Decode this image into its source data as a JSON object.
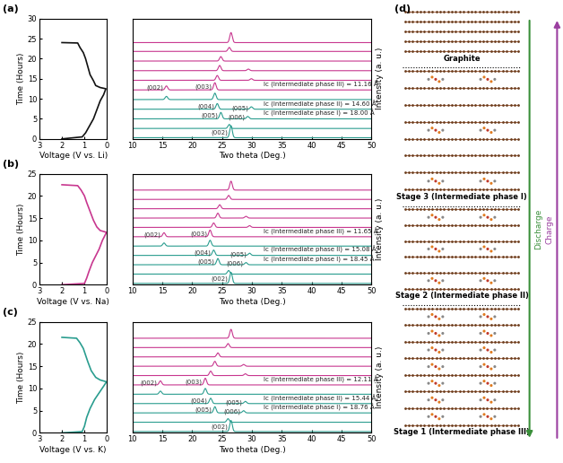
{
  "chart_data": [
    {
      "type": "line",
      "panel_label": "(a)",
      "x_label": "Voltage (V vs. Li)",
      "y_label": "Time (Hours)",
      "color": "#111111",
      "x": [
        2.0,
        1.1,
        0.95,
        0.85,
        0.75,
        0.6,
        0.5,
        0.4,
        0.3,
        0.15,
        0.05,
        0.3,
        0.5,
        0.6,
        0.75,
        0.85,
        0.95,
        1.05,
        1.2,
        1.3,
        2.0
      ],
      "values": [
        0,
        0.5,
        1.5,
        2.5,
        3.5,
        5,
        6.5,
        8,
        9.5,
        11,
        12.5,
        12.8,
        13.3,
        14.5,
        16,
        18,
        20,
        21.5,
        22.8,
        23.9,
        24.0
      ],
      "xlim": [
        3,
        0
      ],
      "xticks": [
        3,
        2,
        1,
        0
      ],
      "ylim": [
        0,
        30
      ],
      "yticks": [
        0,
        5,
        10,
        15,
        20,
        25,
        30
      ]
    },
    {
      "type": "line",
      "x_label": "Two theta (Deg.)",
      "y_label": "Intensity (a. u.)",
      "xlim": [
        10,
        50
      ],
      "xticks": [
        10,
        15,
        20,
        25,
        30,
        35,
        40,
        45,
        50
      ],
      "ylim": [
        0,
        30
      ],
      "tick_labels": "x",
      "traces": [
        {
          "offset": 0.3,
          "color": "#2a9d8f",
          "peaks": [
            {
              "two_theta": 26.5,
              "intensity": 3.0,
              "label": "(002)"
            }
          ]
        },
        {
          "offset": 2.6,
          "color": "#2a9d8f",
          "peaks": [
            {
              "two_theta": 26.2,
              "intensity": 1.0
            }
          ]
        },
        {
          "offset": 5.0,
          "color": "#2a9d8f",
          "peaks": [
            {
              "two_theta": 24.8,
              "intensity": 1.6,
              "label": "(005)"
            },
            {
              "two_theta": 29.3,
              "intensity": 0.6,
              "label": "(006)"
            }
          ],
          "note": "Ic (Intermediate phase I) = 18.00 Å"
        },
        {
          "offset": 7.4,
          "color": "#2a9d8f",
          "peaks": [
            {
              "two_theta": 24.2,
              "intensity": 1.4,
              "label": "(004)"
            },
            {
              "two_theta": 29.9,
              "intensity": 0.6,
              "label": "(005)"
            }
          ],
          "note": "Ic (Intermediate phase II) = 14.60 Å"
        },
        {
          "offset": 9.8,
          "color": "#2a9d8f",
          "peaks": [
            {
              "two_theta": 15.7,
              "intensity": 0.8
            },
            {
              "two_theta": 23.8,
              "intensity": 1.6
            }
          ]
        },
        {
          "offset": 12.2,
          "color": "#c8378f",
          "peaks": [
            {
              "two_theta": 15.7,
              "intensity": 1.0,
              "label": "(002)"
            },
            {
              "two_theta": 23.8,
              "intensity": 1.8,
              "label": "(003)"
            }
          ],
          "note": "Ic (Intermediate phase III) = 11.16 Å"
        },
        {
          "offset": 14.6,
          "color": "#c8378f",
          "peaks": [
            {
              "two_theta": 24.2,
              "intensity": 1.2
            },
            {
              "two_theta": 29.9,
              "intensity": 0.4
            }
          ]
        },
        {
          "offset": 17.0,
          "color": "#c8378f",
          "peaks": [
            {
              "two_theta": 24.6,
              "intensity": 1.3
            },
            {
              "two_theta": 29.4,
              "intensity": 0.4
            }
          ]
        },
        {
          "offset": 19.4,
          "color": "#c8378f",
          "peaks": [
            {
              "two_theta": 24.8,
              "intensity": 1.1
            }
          ]
        },
        {
          "offset": 21.8,
          "color": "#c8378f",
          "peaks": [
            {
              "two_theta": 26.2,
              "intensity": 1.0
            }
          ]
        },
        {
          "offset": 24.0,
          "color": "#c8378f",
          "peaks": [
            {
              "two_theta": 26.5,
              "intensity": 2.5
            }
          ]
        }
      ]
    },
    {
      "type": "line",
      "panel_label": "(b)",
      "x_label": "Voltage (V vs. Na)",
      "y_label": "Time (Hours)",
      "color": "#c8378f",
      "x": [
        2.0,
        1.0,
        0.9,
        0.8,
        0.65,
        0.5,
        0.35,
        0.2,
        0.02,
        0.3,
        0.45,
        0.6,
        0.75,
        0.9,
        1.0,
        1.15,
        1.3,
        2.0
      ],
      "values": [
        0,
        0.3,
        1.5,
        3,
        5,
        6.5,
        8,
        10,
        11.8,
        12.2,
        13,
        14.5,
        16.5,
        18.5,
        20,
        21.3,
        22.3,
        22.5
      ],
      "xlim": [
        3,
        0
      ],
      "xticks": [
        3,
        2,
        1,
        0
      ],
      "ylim": [
        0,
        25
      ],
      "yticks": [
        0,
        5,
        10,
        15,
        20,
        25
      ]
    },
    {
      "type": "line",
      "x_label": "Two theta (Deg.)",
      "y_label": "Intensity (a. u.)",
      "xlim": [
        10,
        50
      ],
      "xticks": [
        10,
        15,
        20,
        25,
        30,
        35,
        40,
        45,
        50
      ],
      "ylim": [
        0,
        25
      ],
      "tick_labels": "x",
      "traces": [
        {
          "offset": 0.3,
          "color": "#2a9d8f",
          "peaks": [
            {
              "two_theta": 26.5,
              "intensity": 2.5,
              "label": "(002)"
            }
          ]
        },
        {
          "offset": 2.4,
          "color": "#2a9d8f",
          "peaks": [
            {
              "two_theta": 26.1,
              "intensity": 0.8
            }
          ]
        },
        {
          "offset": 4.5,
          "color": "#2a9d8f",
          "peaks": [
            {
              "two_theta": 24.3,
              "intensity": 1.4,
              "label": "(005)"
            },
            {
              "two_theta": 29.0,
              "intensity": 0.5,
              "label": "(006)"
            }
          ],
          "note": "Ic (Intermediate phase I) = 18.45 Å"
        },
        {
          "offset": 6.6,
          "color": "#2a9d8f",
          "peaks": [
            {
              "two_theta": 23.6,
              "intensity": 1.2,
              "label": "(004)"
            },
            {
              "two_theta": 29.6,
              "intensity": 0.5,
              "label": "(005)"
            }
          ],
          "note": "Ic (Intermediate phase II) = 15.08 Å"
        },
        {
          "offset": 8.7,
          "color": "#2a9d8f",
          "peaks": [
            {
              "two_theta": 15.3,
              "intensity": 0.7
            },
            {
              "two_theta": 23.0,
              "intensity": 1.3
            }
          ]
        },
        {
          "offset": 10.8,
          "color": "#c8378f",
          "peaks": [
            {
              "two_theta": 15.3,
              "intensity": 0.9,
              "label": "(002)"
            },
            {
              "two_theta": 23.0,
              "intensity": 1.5,
              "label": "(003)"
            }
          ],
          "note": "Ic (Intermediate phase III) = 11.65 Å"
        },
        {
          "offset": 12.9,
          "color": "#c8378f",
          "peaks": [
            {
              "two_theta": 23.6,
              "intensity": 1.0
            },
            {
              "two_theta": 29.6,
              "intensity": 0.4
            }
          ]
        },
        {
          "offset": 15.0,
          "color": "#c8378f",
          "peaks": [
            {
              "two_theta": 24.3,
              "intensity": 1.1
            },
            {
              "two_theta": 29.0,
              "intensity": 0.4
            }
          ]
        },
        {
          "offset": 17.1,
          "color": "#c8378f",
          "peaks": [
            {
              "two_theta": 24.6,
              "intensity": 0.9
            }
          ]
        },
        {
          "offset": 19.2,
          "color": "#c8378f",
          "peaks": [
            {
              "two_theta": 26.1,
              "intensity": 0.9
            }
          ]
        },
        {
          "offset": 21.3,
          "color": "#c8378f",
          "peaks": [
            {
              "two_theta": 26.5,
              "intensity": 2.0
            }
          ]
        }
      ]
    },
    {
      "type": "line",
      "panel_label": "(c)",
      "x_label": "Voltage (V vs. K)",
      "y_label": "Time (Hours)",
      "color": "#2a9d8f",
      "x": [
        2.0,
        1.1,
        1.0,
        0.9,
        0.75,
        0.55,
        0.35,
        0.15,
        0.02,
        0.3,
        0.5,
        0.7,
        0.85,
        0.95,
        1.05,
        1.2,
        1.35,
        2.0
      ],
      "values": [
        0,
        0.3,
        1.5,
        3.5,
        5.5,
        7.5,
        9,
        10.5,
        11.5,
        11.9,
        12.5,
        14,
        16,
        17.5,
        19,
        20.3,
        21.3,
        21.5
      ],
      "xlim": [
        3,
        0
      ],
      "xticks": [
        3,
        2,
        1,
        0
      ],
      "ylim": [
        0,
        25
      ],
      "yticks": [
        0,
        5,
        10,
        15,
        20,
        25
      ]
    },
    {
      "type": "line",
      "x_label": "Two theta (Deg.)",
      "y_label": "Intensity (a. u.)",
      "xlim": [
        10,
        50
      ],
      "xticks": [
        10,
        15,
        20,
        25,
        30,
        35,
        40,
        45,
        50
      ],
      "ylim": [
        0,
        25
      ],
      "tick_labels": "x",
      "traces": [
        {
          "offset": 0.3,
          "color": "#2a9d8f",
          "peaks": [
            {
              "two_theta": 26.5,
              "intensity": 2.5,
              "label": "(002)"
            }
          ]
        },
        {
          "offset": 2.4,
          "color": "#2a9d8f",
          "peaks": [
            {
              "two_theta": 26.0,
              "intensity": 0.8
            }
          ]
        },
        {
          "offset": 4.5,
          "color": "#2a9d8f",
          "peaks": [
            {
              "two_theta": 23.8,
              "intensity": 1.4,
              "label": "(005)"
            },
            {
              "two_theta": 28.6,
              "intensity": 0.5,
              "label": "(006)"
            }
          ],
          "note": "Ic (Intermediate phase I) = 18.76 Å"
        },
        {
          "offset": 6.6,
          "color": "#2a9d8f",
          "peaks": [
            {
              "two_theta": 23.1,
              "intensity": 1.2,
              "label": "(004)"
            },
            {
              "two_theta": 28.9,
              "intensity": 0.5,
              "label": "(005)"
            }
          ],
          "note": "Ic (Intermediate phase II) = 15.44 Å"
        },
        {
          "offset": 8.7,
          "color": "#2a9d8f",
          "peaks": [
            {
              "two_theta": 14.7,
              "intensity": 0.7
            },
            {
              "two_theta": 22.2,
              "intensity": 1.3
            }
          ]
        },
        {
          "offset": 10.8,
          "color": "#c8378f",
          "peaks": [
            {
              "two_theta": 14.7,
              "intensity": 0.9,
              "label": "(002)"
            },
            {
              "two_theta": 22.2,
              "intensity": 1.5,
              "label": "(003)"
            }
          ],
          "note": "Ic (Intermediate phase III) = 12.11 Å"
        },
        {
          "offset": 12.9,
          "color": "#c8378f",
          "peaks": [
            {
              "two_theta": 23.1,
              "intensity": 1.0
            },
            {
              "two_theta": 28.9,
              "intensity": 0.4
            }
          ]
        },
        {
          "offset": 15.0,
          "color": "#c8378f",
          "peaks": [
            {
              "two_theta": 23.8,
              "intensity": 1.1
            },
            {
              "two_theta": 28.6,
              "intensity": 0.4
            }
          ]
        },
        {
          "offset": 17.1,
          "color": "#c8378f",
          "peaks": [
            {
              "two_theta": 24.3,
              "intensity": 0.9
            }
          ]
        },
        {
          "offset": 19.2,
          "color": "#c8378f",
          "peaks": [
            {
              "two_theta": 26.0,
              "intensity": 0.9
            }
          ]
        },
        {
          "offset": 21.3,
          "color": "#c8378f",
          "peaks": [
            {
              "two_theta": 26.5,
              "intensity": 2.0
            }
          ]
        }
      ]
    }
  ],
  "diagram": {
    "panel_label": "(d)",
    "sections": [
      "Graphite",
      "Stage 3 (Intermediate phase I)",
      "Stage 2 (Intermediate phase II)",
      "Stage 1 (Intermediate phase III)"
    ],
    "arrows": {
      "down": "Discharge",
      "up": "Charge"
    }
  }
}
